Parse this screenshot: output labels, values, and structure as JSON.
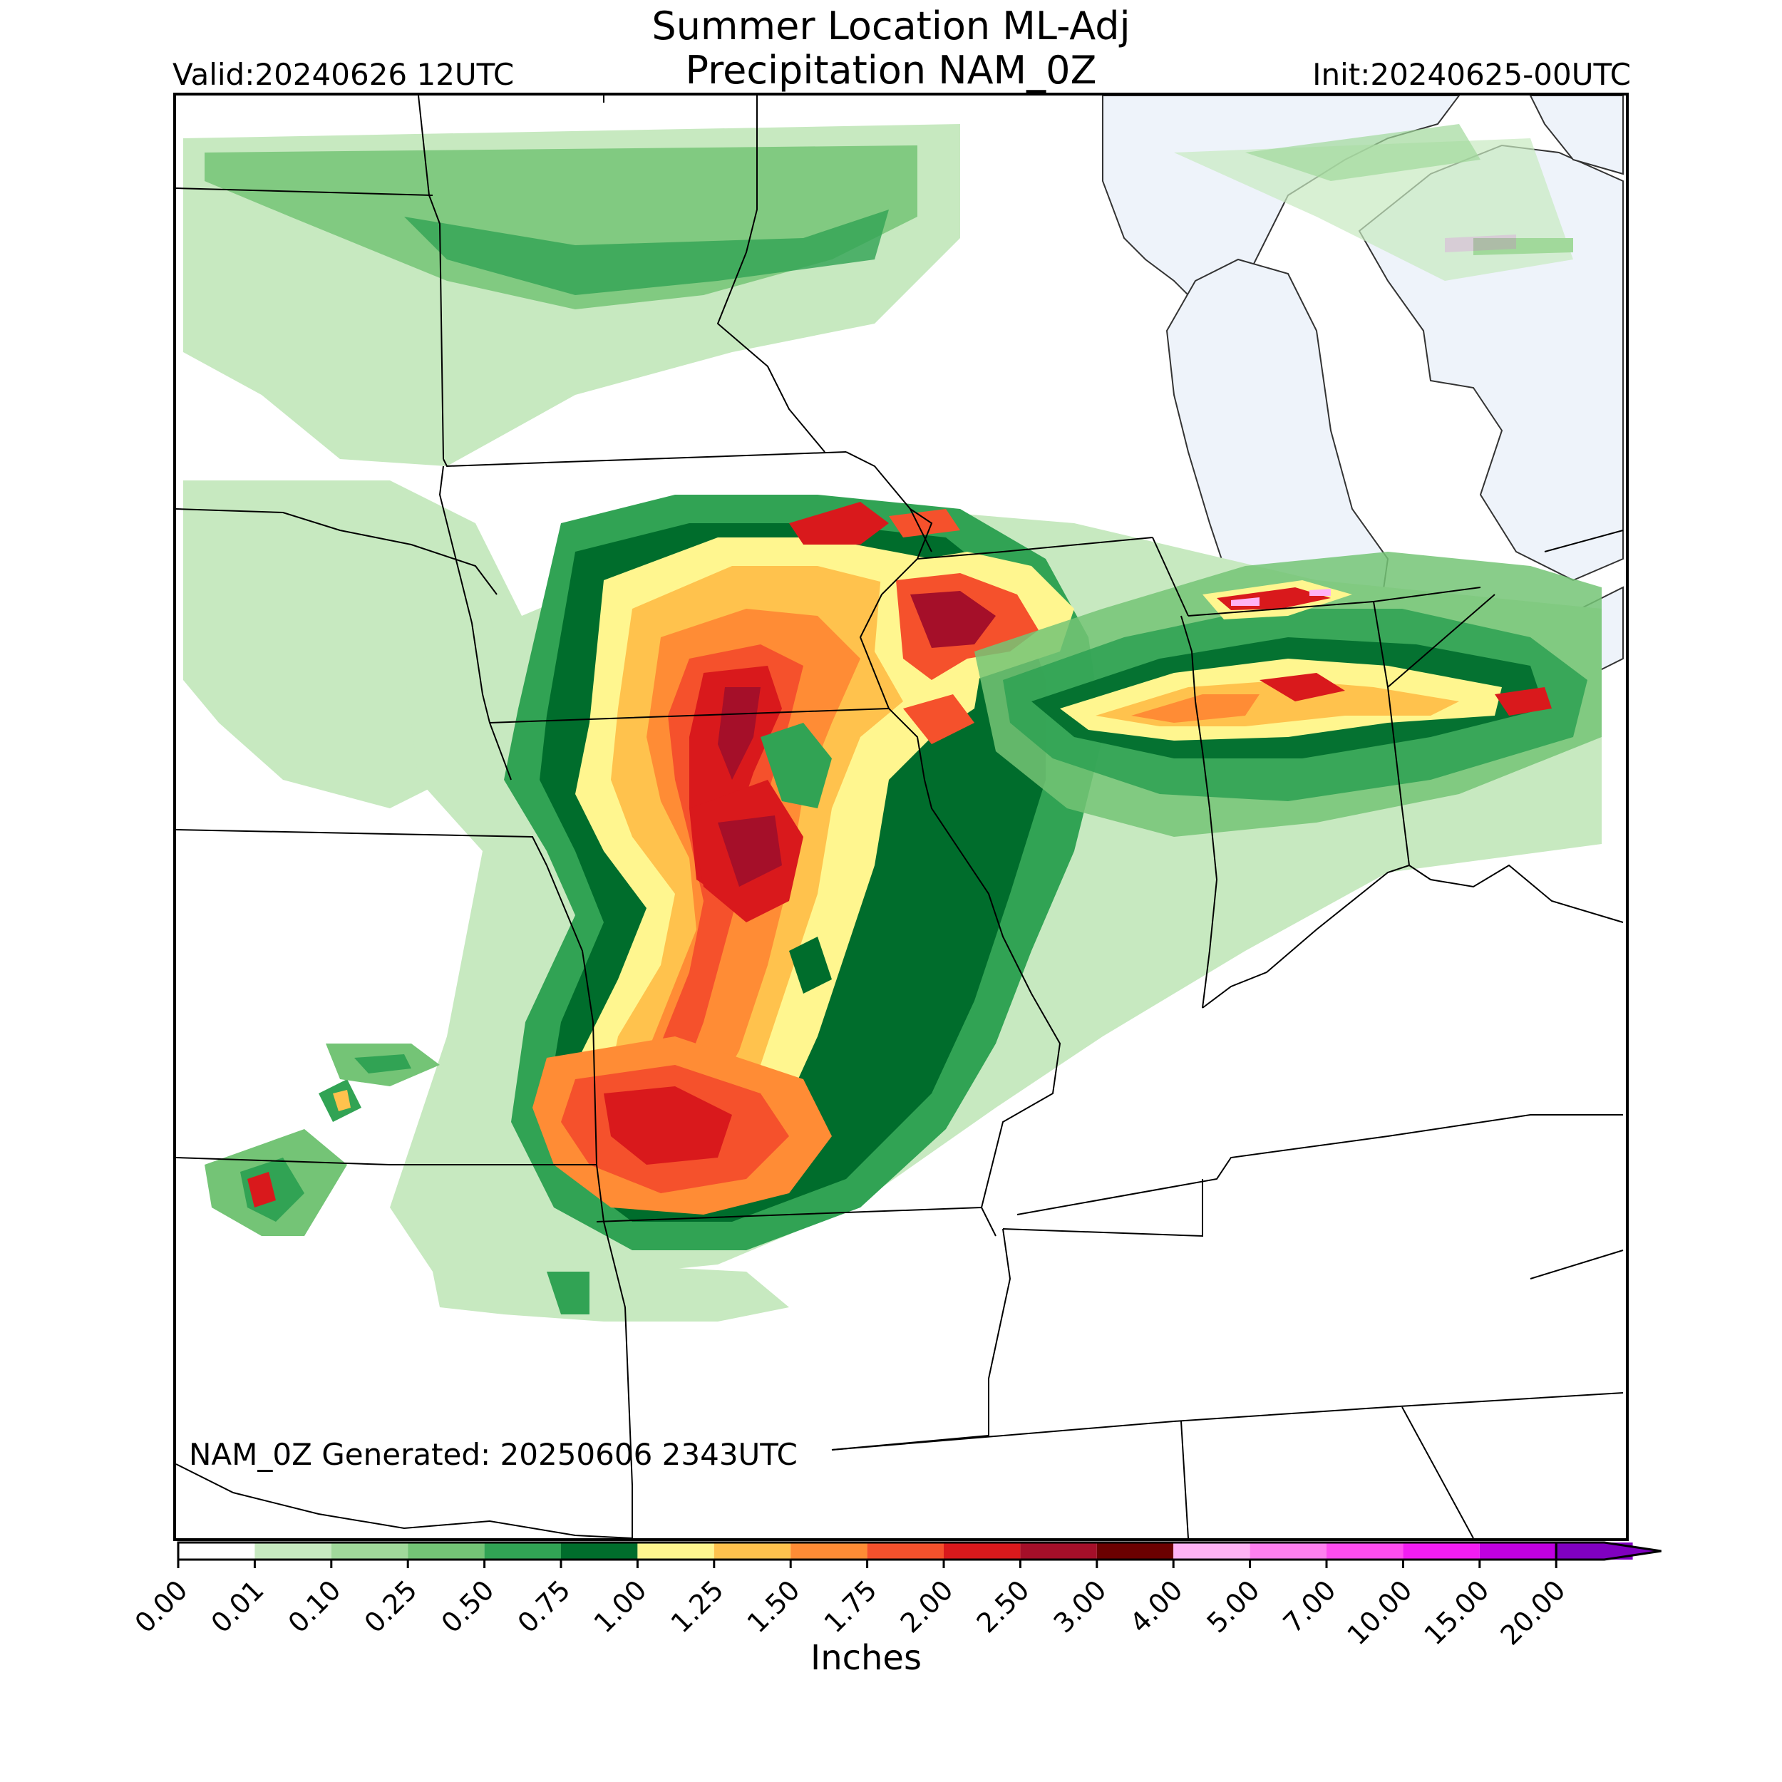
{
  "header": {
    "title_line1": "Summer Location ML-Adj",
    "title_line2": "Precipitation NAM_0Z",
    "valid": "Valid:20240626 12UTC",
    "init": "Init:20240625-00UTC"
  },
  "map": {
    "generated_note": "NAM_0Z Generated: 20250606 2343UTC",
    "water_color": "#eef3fa",
    "border_color": "#000000"
  },
  "colorbar": {
    "label": "Inches",
    "ticks": [
      "0.00",
      "0.01",
      "0.10",
      "0.25",
      "0.50",
      "0.75",
      "1.00",
      "1.25",
      "1.50",
      "1.75",
      "2.00",
      "2.50",
      "3.00",
      "4.00",
      "5.00",
      "7.00",
      "10.00",
      "15.00",
      "20.00"
    ],
    "colors": [
      "#ffffff",
      "#c7e9c0",
      "#a1d99b",
      "#74c476",
      "#31a354",
      "#006d2c",
      "#fff68f",
      "#ffc24d",
      "#ff8c35",
      "#f5512c",
      "#d9191c",
      "#a50f29",
      "#6b0000",
      "#ffb3f5",
      "#ff80f0",
      "#ff4df0",
      "#f21df2",
      "#c000e0",
      "#8000c0"
    ],
    "extend_color": "#8000c0"
  },
  "chart_data": {
    "type": "heatmap",
    "title": "Summer Location ML-Adj Precipitation NAM_0Z",
    "units": "Inches",
    "levels": [
      0.0,
      0.01,
      0.1,
      0.25,
      0.5,
      0.75,
      1.0,
      1.25,
      1.5,
      1.75,
      2.0,
      2.5,
      3.0,
      4.0,
      5.0,
      7.0,
      10.0,
      15.0,
      20.0
    ],
    "max_observed_level": "4.00-5.00",
    "region": "Upper Midwest / Great Lakes (valid 20240626 12UTC)"
  }
}
